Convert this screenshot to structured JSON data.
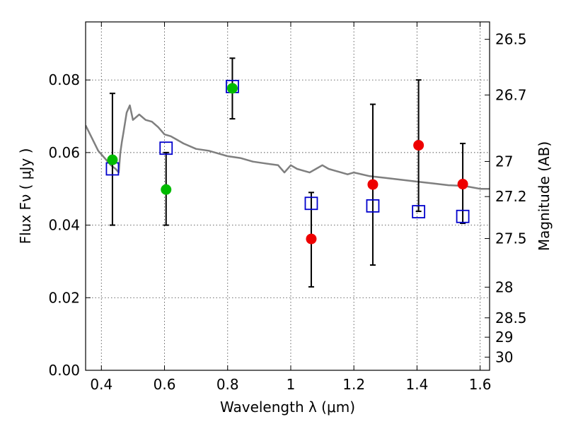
{
  "chart_data": {
    "type": "scatter",
    "title": "",
    "xlabel": "Wavelength  λ (μm)",
    "ylabel": "Flux  Fν  ( μJy )",
    "ylabel_right": "Magnitude (AB)",
    "xlim": [
      0.35,
      1.63
    ],
    "ylim": [
      0.0,
      0.096
    ],
    "grid": true,
    "x_ticks": [
      {
        "value": 0.4,
        "label": "0.4"
      },
      {
        "value": 0.6,
        "label": "0.6"
      },
      {
        "value": 0.8,
        "label": "0.8"
      },
      {
        "value": 1.0,
        "label": "1"
      },
      {
        "value": 1.2,
        "label": "1.2"
      },
      {
        "value": 1.4,
        "label": "1.4"
      },
      {
        "value": 1.6,
        "label": "1.6"
      }
    ],
    "y_ticks": [
      {
        "value": 0.0,
        "label": "0.00"
      },
      {
        "value": 0.02,
        "label": "0.02"
      },
      {
        "value": 0.04,
        "label": "0.04"
      },
      {
        "value": 0.06,
        "label": "0.06"
      },
      {
        "value": 0.08,
        "label": "0.08"
      }
    ],
    "right_ticks": [
      {
        "mag": 26.5,
        "label": "26.5"
      },
      {
        "mag": 26.7,
        "label": "26.7"
      },
      {
        "mag": 27.0,
        "label": "27"
      },
      {
        "mag": 27.2,
        "label": "27.2"
      },
      {
        "mag": 27.5,
        "label": "27.5"
      },
      {
        "mag": 28.0,
        "label": "28"
      },
      {
        "mag": 28.5,
        "label": "28.5"
      },
      {
        "mag": 29.0,
        "label": "29"
      },
      {
        "mag": 30.0,
        "label": "30"
      }
    ],
    "colors": {
      "sed": "#7f7f7f",
      "model_box": "#0000cc",
      "optical": "#00bb00",
      "nir": "#ee0000",
      "errorbar": "#000000"
    },
    "sed_model": {
      "x": [
        0.35,
        0.37,
        0.39,
        0.41,
        0.43,
        0.445,
        0.455,
        0.46,
        0.465,
        0.47,
        0.48,
        0.49,
        0.5,
        0.52,
        0.54,
        0.56,
        0.58,
        0.6,
        0.62,
        0.64,
        0.66,
        0.7,
        0.74,
        0.78,
        0.8,
        0.84,
        0.88,
        0.92,
        0.96,
        0.98,
        1.0,
        1.02,
        1.04,
        1.06,
        1.08,
        1.1,
        1.12,
        1.14,
        1.16,
        1.18,
        1.2,
        1.25,
        1.3,
        1.35,
        1.4,
        1.45,
        1.5,
        1.55,
        1.6,
        1.63
      ],
      "y": [
        0.0675,
        0.064,
        0.0605,
        0.0585,
        0.0565,
        0.0555,
        0.0545,
        0.06,
        0.063,
        0.0655,
        0.071,
        0.073,
        0.069,
        0.0705,
        0.069,
        0.0685,
        0.067,
        0.065,
        0.0645,
        0.0635,
        0.0625,
        0.061,
        0.0605,
        0.0595,
        0.059,
        0.0585,
        0.0575,
        0.057,
        0.0565,
        0.0545,
        0.0565,
        0.0555,
        0.055,
        0.0545,
        0.0555,
        0.0565,
        0.0555,
        0.055,
        0.0545,
        0.054,
        0.0545,
        0.0535,
        0.053,
        0.0525,
        0.052,
        0.0515,
        0.051,
        0.0508,
        0.05,
        0.05
      ]
    },
    "series": [
      {
        "marker": "open-square",
        "x": [
          0.435,
          0.605,
          0.815,
          1.065,
          1.26,
          1.405,
          1.545
        ],
        "y": [
          0.0555,
          0.0612,
          0.0782,
          0.046,
          0.0453,
          0.0437,
          0.0424
        ]
      },
      {
        "marker": "filled-circle",
        "x": [
          0.435,
          0.605,
          0.815
        ],
        "y": [
          0.058,
          0.0498,
          0.0777
        ],
        "yerr_low": [
          0.04,
          0.04,
          0.0693
        ],
        "yerr_high": [
          0.0763,
          0.06,
          0.086
        ]
      },
      {
        "marker": "filled-circle",
        "x": [
          1.065,
          1.26,
          1.405,
          1.545
        ],
        "y": [
          0.0362,
          0.0512,
          0.062,
          0.0513
        ],
        "yerr_low": [
          0.023,
          0.029,
          0.0438,
          0.0405
        ],
        "yerr_high": [
          0.049,
          0.0733,
          0.08,
          0.0625
        ]
      }
    ]
  }
}
